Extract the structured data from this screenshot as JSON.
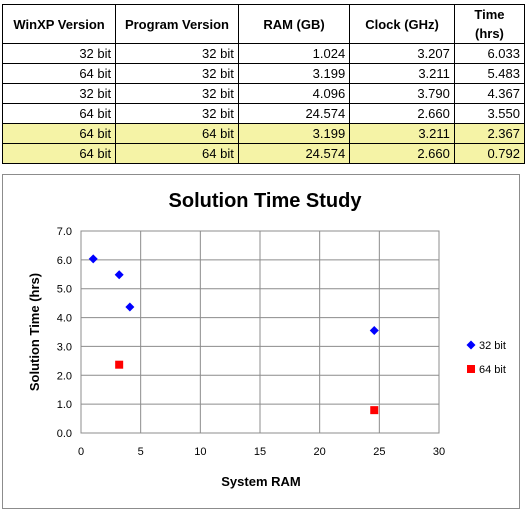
{
  "table": {
    "headers": [
      "WinXP Version",
      "Program Version",
      "RAM (GB)",
      "Clock (GHz)",
      "Time (hrs)"
    ],
    "rows": [
      {
        "winxp": "32 bit",
        "program": "32 bit",
        "ram": "1.024",
        "clock": "3.207",
        "time": "6.033",
        "highlight": false
      },
      {
        "winxp": "64 bit",
        "program": "32 bit",
        "ram": "3.199",
        "clock": "3.211",
        "time": "5.483",
        "highlight": false
      },
      {
        "winxp": "32 bit",
        "program": "32 bit",
        "ram": "4.096",
        "clock": "3.790",
        "time": "4.367",
        "highlight": false
      },
      {
        "winxp": "64 bit",
        "program": "32 bit",
        "ram": "24.574",
        "clock": "2.660",
        "time": "3.550",
        "highlight": false
      },
      {
        "winxp": "64 bit",
        "program": "64 bit",
        "ram": "3.199",
        "clock": "3.211",
        "time": "2.367",
        "highlight": true
      },
      {
        "winxp": "64 bit",
        "program": "64 bit",
        "ram": "24.574",
        "clock": "2.660",
        "time": "0.792",
        "highlight": true
      }
    ],
    "highlight_color": "#f5f3a6"
  },
  "chart_data": {
    "type": "scatter",
    "title": "Solution Time Study",
    "xlabel": "System RAM",
    "ylabel": "Solution Time (hrs)",
    "xlim": [
      0,
      30
    ],
    "ylim": [
      0,
      7
    ],
    "xticks": [
      "0",
      "5",
      "10",
      "15",
      "20",
      "25",
      "30"
    ],
    "yticks": [
      "0.0",
      "1.0",
      "2.0",
      "3.0",
      "4.0",
      "5.0",
      "6.0",
      "7.0"
    ],
    "grid": true,
    "legend_position": "right",
    "series": [
      {
        "name": "32 bit",
        "marker": "diamond",
        "color": "#0000ff",
        "points": [
          [
            1.024,
            6.033
          ],
          [
            3.199,
            5.483
          ],
          [
            4.096,
            4.367
          ],
          [
            24.574,
            3.55
          ]
        ]
      },
      {
        "name": "64 bit",
        "marker": "square",
        "color": "#ff0000",
        "points": [
          [
            3.199,
            2.367
          ],
          [
            24.574,
            0.792
          ]
        ]
      }
    ]
  }
}
